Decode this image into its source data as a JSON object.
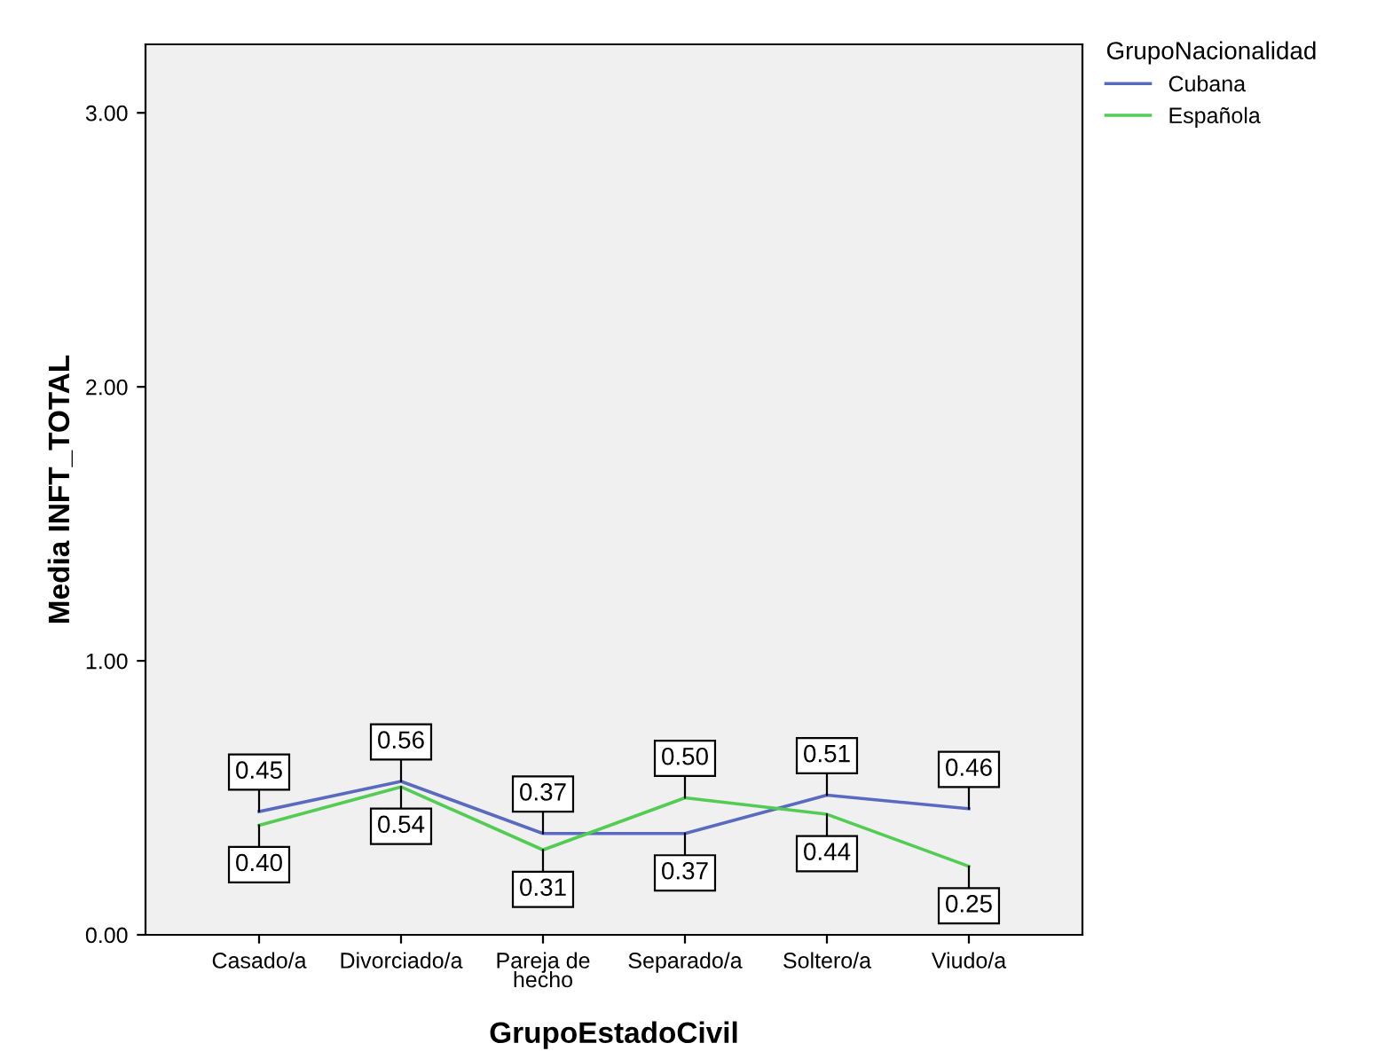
{
  "chart_data": {
    "type": "line",
    "xlabel": "GrupoEstadoCivil",
    "ylabel": "Media INFT_TOTAL",
    "legend_title": "GrupoNacionalidad",
    "categories": [
      "Casado/a",
      "Divorciado/a",
      "Pareja de\nhecho",
      "Separado/a",
      "Soltero/a",
      "Viudo/a"
    ],
    "series": [
      {
        "name": "Cubana",
        "color": "#5a6bbf",
        "values": [
          0.45,
          0.56,
          0.37,
          0.37,
          0.51,
          0.46
        ],
        "value_labels": [
          "0.45",
          "0.56",
          "0.37",
          "0.37",
          "0.51",
          "0.46"
        ]
      },
      {
        "name": "Española",
        "color": "#52cc52",
        "values": [
          0.4,
          0.54,
          0.31,
          0.5,
          0.44,
          0.25
        ],
        "value_labels": [
          "0.40",
          "0.54",
          "0.31",
          "0.50",
          "0.44",
          "0.25"
        ]
      }
    ],
    "ylim": [
      0,
      3.25
    ],
    "yticks": [
      {
        "value": 0,
        "label": "0.00"
      },
      {
        "value": 1,
        "label": "1.00"
      },
      {
        "value": 2,
        "label": "2.00"
      },
      {
        "value": 3,
        "label": "3.00"
      }
    ],
    "grid": false,
    "legend": "top right",
    "marker": "none",
    "line_style": "solid"
  }
}
